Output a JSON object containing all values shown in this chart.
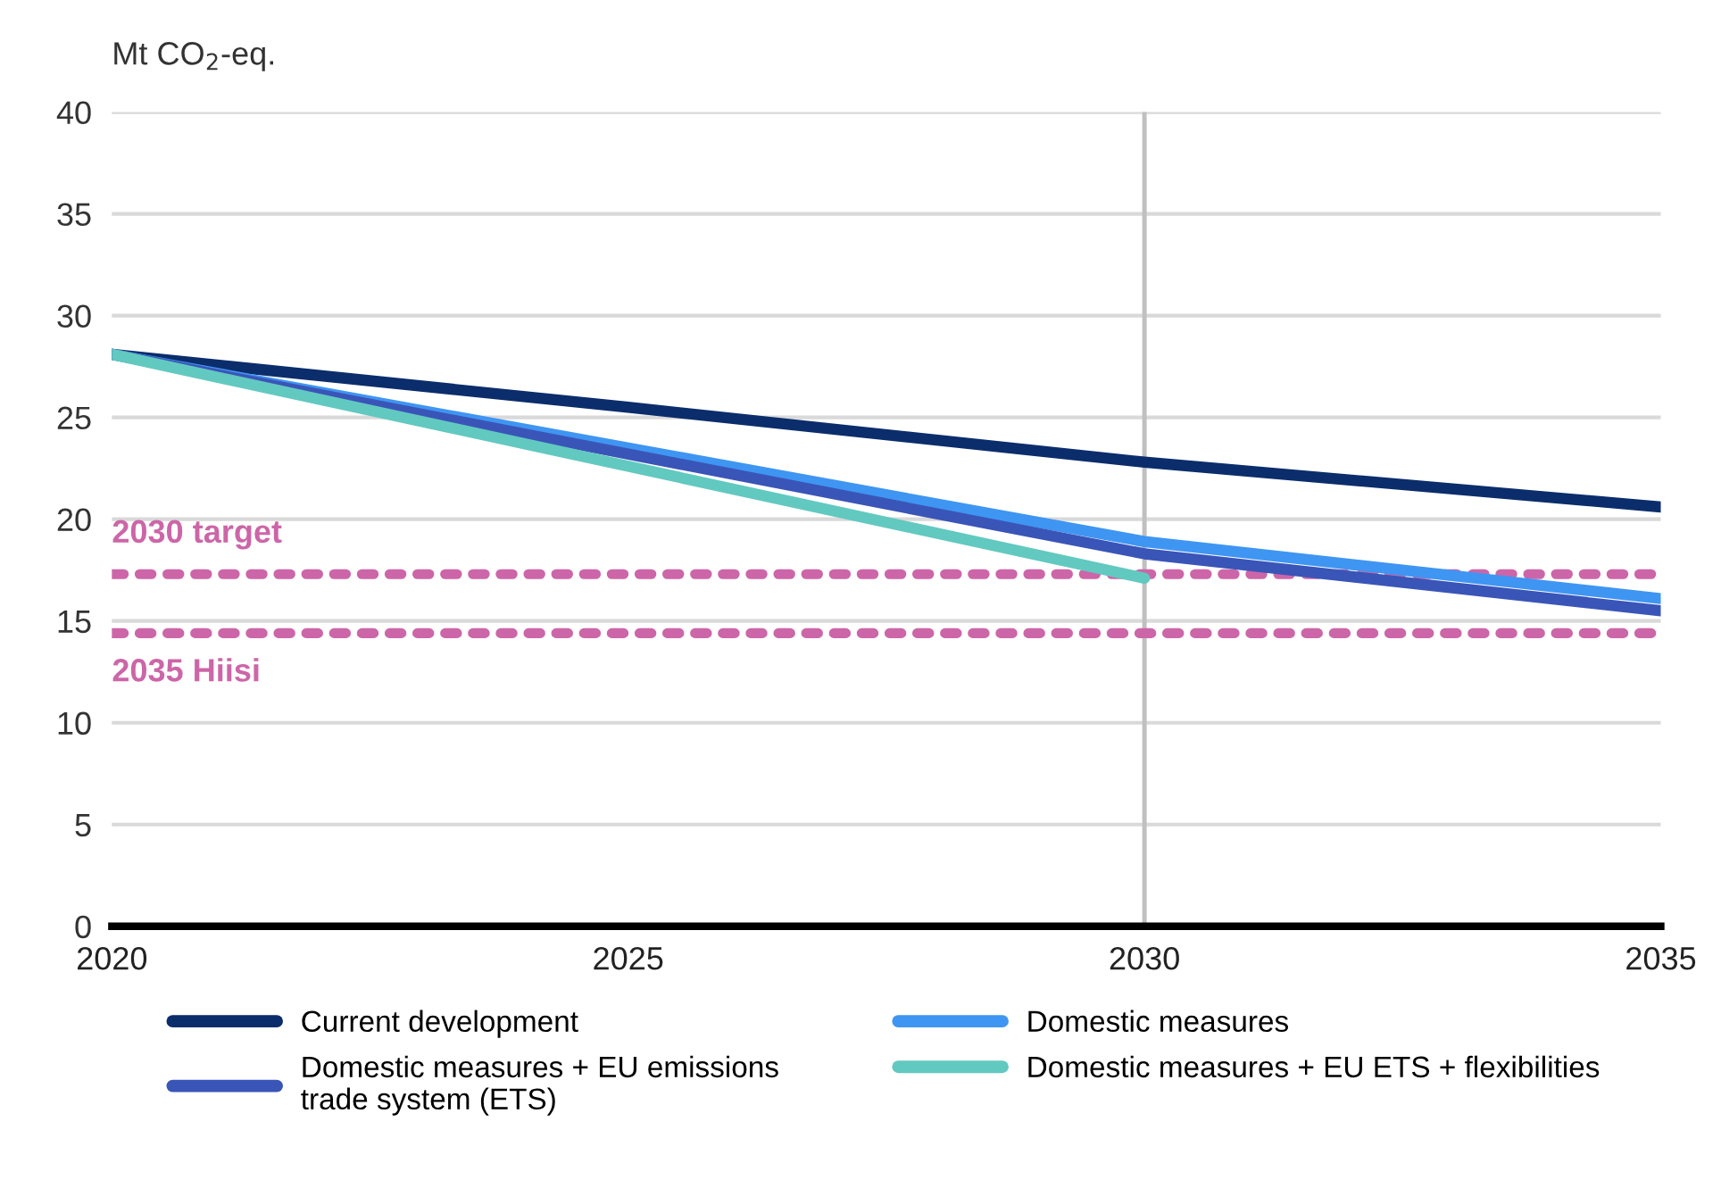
{
  "chart_data": {
    "type": "line",
    "ylabel": "Mt CO$_{2}$-eq.",
    "x": [
      2020,
      2030,
      2035
    ],
    "series": [
      {
        "name": "Current development",
        "color": "#0b2d6b",
        "x": [
          2020,
          2025,
          2030,
          2035
        ],
        "values": [
          28.1,
          25.5,
          22.8,
          20.6
        ]
      },
      {
        "name": "Domestic measures",
        "color": "#3f95f2",
        "values": [
          28.1,
          18.9,
          16.1
        ]
      },
      {
        "name": "Domestic measures + EU emissions trade system (ETS)",
        "color": "#3a55b8",
        "values": [
          28.1,
          18.3,
          15.5
        ]
      },
      {
        "name": "Domestic measures + EU ETS + flexibilities",
        "color": "#62c9c0",
        "x": [
          2020,
          2030
        ],
        "values": [
          28.1,
          17.1
        ]
      }
    ],
    "xlim": [
      2020,
      2035
    ],
    "xticks": [
      2020,
      2025,
      2030,
      2035
    ],
    "ylim": [
      0,
      40
    ],
    "yticks": [
      0,
      5,
      10,
      15,
      20,
      25,
      30,
      35,
      40
    ],
    "grid": "y",
    "legend": "bottom",
    "line_style": "solid",
    "marker": "none",
    "ref_lines": [
      {
        "axis": "y",
        "value": 17.3,
        "label": "2030 target",
        "color": "#cc66a8",
        "line_style": "dotted"
      },
      {
        "axis": "y",
        "value": 14.4,
        "label": "2035 Hiisi",
        "color": "#cc66a8",
        "line_style": "dotted"
      },
      {
        "axis": "x",
        "value": 2030,
        "label": null,
        "color": "#c0c0c0",
        "line_style": "solid"
      }
    ]
  }
}
